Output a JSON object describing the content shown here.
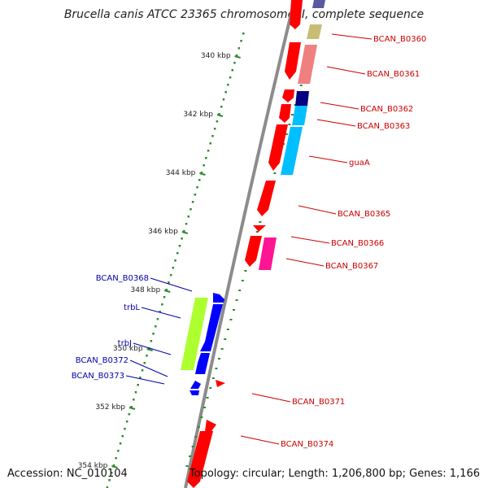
{
  "title": "Brucella canis ATCC 23365 chromosome II, complete sequence",
  "footer": {
    "accession": "Accession: NC_010104",
    "summary": "Topology: circular; Length: 1,206,800 bp; Genes: 1,166"
  },
  "colors": {
    "backbone": "#8c8c8c",
    "ticks": "#2e8b2e",
    "forward_label": "#cc0000",
    "reverse_label": "#0000aa"
  },
  "ticks": [
    {
      "kbp": 340,
      "label": "340 kbp"
    },
    {
      "kbp": 342,
      "label": "342 kbp"
    },
    {
      "kbp": 344,
      "label": "344 kbp"
    },
    {
      "kbp": 346,
      "label": "346 kbp"
    },
    {
      "kbp": 348,
      "label": "348 kbp"
    },
    {
      "kbp": 350,
      "label": "350 kbp"
    },
    {
      "kbp": 352,
      "label": "352 kbp"
    },
    {
      "kbp": 354,
      "label": "354 kbp"
    }
  ],
  "forward_labels": [
    {
      "name": "BCAN_B0360"
    },
    {
      "name": "BCAN_B0361"
    },
    {
      "name": "BCAN_B0362"
    },
    {
      "name": "BCAN_B0363"
    },
    {
      "name": "guaA"
    },
    {
      "name": "BCAN_B0365"
    },
    {
      "name": "BCAN_B0366"
    },
    {
      "name": "BCAN_B0367"
    },
    {
      "name": "BCAN_B0371"
    },
    {
      "name": "BCAN_B0374"
    }
  ],
  "reverse_labels": [
    {
      "name": "BCAN_B0368"
    },
    {
      "name": "trbL"
    },
    {
      "name": "trbJ"
    },
    {
      "name": "BCAN_B0372"
    },
    {
      "name": "BCAN_B0373"
    }
  ]
}
